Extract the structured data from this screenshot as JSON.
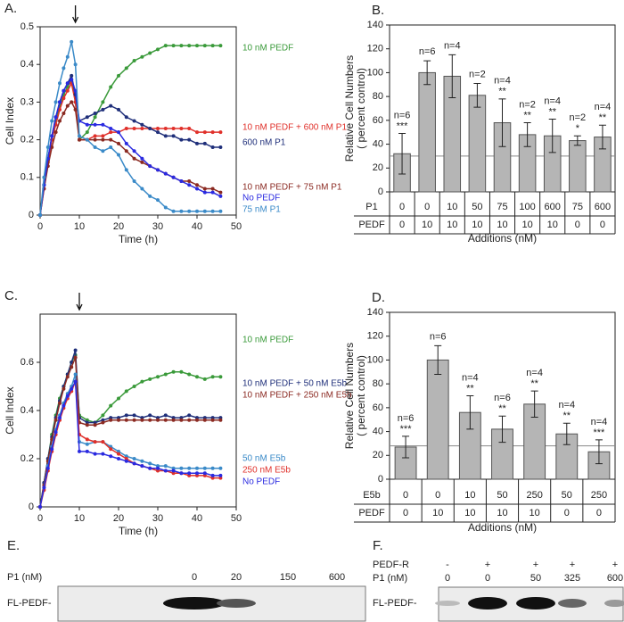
{
  "chart_data": [
    {
      "type": "line",
      "panel_label": "A.",
      "xlabel": "Time (h)",
      "ylabel": "Cell Index",
      "xlim": [
        0,
        50
      ],
      "xticks": [
        0,
        10,
        20,
        30,
        40,
        50
      ],
      "ylim": [
        0,
        0.5
      ],
      "yticks": [
        0,
        0.1,
        0.2,
        0.3,
        0.4,
        0.5
      ],
      "arrow_x": 9,
      "x": [
        0,
        1,
        2,
        3,
        4,
        5,
        6,
        7,
        8,
        9,
        10,
        12,
        14,
        16,
        18,
        20,
        22,
        24,
        26,
        28,
        30,
        32,
        34,
        36,
        38,
        40,
        42,
        44,
        46
      ],
      "series": [
        {
          "name": "10 nM PEDF",
          "color": "#3a9a3a",
          "values": [
            0,
            0.08,
            0.15,
            0.2,
            0.25,
            0.29,
            0.32,
            0.34,
            0.36,
            0.3,
            0.2,
            0.22,
            0.26,
            0.3,
            0.34,
            0.37,
            0.39,
            0.41,
            0.42,
            0.43,
            0.44,
            0.45,
            0.45,
            0.45,
            0.45,
            0.45,
            0.45,
            0.45,
            0.45
          ]
        },
        {
          "name": "10 nM PEDF + 600 nM P1",
          "color": "#e0302a",
          "values": [
            0,
            0.07,
            0.14,
            0.2,
            0.24,
            0.28,
            0.31,
            0.33,
            0.35,
            0.3,
            0.2,
            0.2,
            0.21,
            0.21,
            0.22,
            0.22,
            0.23,
            0.23,
            0.23,
            0.23,
            0.23,
            0.23,
            0.23,
            0.23,
            0.23,
            0.22,
            0.22,
            0.22,
            0.22
          ]
        },
        {
          "name": "600 nM P1",
          "color": "#1f2f7a",
          "values": [
            0,
            0.08,
            0.15,
            0.21,
            0.26,
            0.3,
            0.33,
            0.35,
            0.37,
            0.32,
            0.25,
            0.26,
            0.27,
            0.28,
            0.29,
            0.28,
            0.26,
            0.25,
            0.24,
            0.23,
            0.22,
            0.21,
            0.21,
            0.2,
            0.2,
            0.19,
            0.19,
            0.18,
            0.18
          ]
        },
        {
          "name": "10 nM PEDF + 75 nM P1",
          "color": "#8b2a22",
          "values": [
            0,
            0.07,
            0.13,
            0.18,
            0.22,
            0.25,
            0.27,
            0.29,
            0.3,
            0.28,
            0.2,
            0.2,
            0.2,
            0.2,
            0.2,
            0.19,
            0.17,
            0.15,
            0.14,
            0.13,
            0.12,
            0.11,
            0.1,
            0.09,
            0.09,
            0.08,
            0.07,
            0.07,
            0.06
          ]
        },
        {
          "name": "No PEDF",
          "color": "#2a2ae0",
          "values": [
            0,
            0.08,
            0.15,
            0.21,
            0.26,
            0.3,
            0.33,
            0.35,
            0.36,
            0.33,
            0.25,
            0.24,
            0.24,
            0.24,
            0.23,
            0.22,
            0.19,
            0.17,
            0.15,
            0.13,
            0.12,
            0.11,
            0.1,
            0.09,
            0.08,
            0.07,
            0.06,
            0.06,
            0.05
          ]
        },
        {
          "name": "75 nM P1",
          "color": "#3a8ac8",
          "values": [
            0,
            0.1,
            0.18,
            0.25,
            0.3,
            0.35,
            0.39,
            0.42,
            0.46,
            0.4,
            0.21,
            0.2,
            0.18,
            0.17,
            0.18,
            0.16,
            0.12,
            0.09,
            0.07,
            0.05,
            0.04,
            0.02,
            0.01,
            0.01,
            0.01,
            0.01,
            0.01,
            0.01,
            0.01
          ]
        }
      ]
    },
    {
      "type": "bar",
      "panel_label": "B.",
      "ylabel": [
        "Relative Cell Numbers",
        "( percent control)"
      ],
      "xlabel": "Additions (nM)",
      "ylim": [
        0,
        140
      ],
      "yticks": [
        0,
        20,
        40,
        60,
        80,
        100,
        120,
        140
      ],
      "reference_line": 30,
      "color": "#b5b5b5",
      "values": [
        32,
        100,
        97,
        81,
        58,
        48,
        47,
        43,
        46
      ],
      "errors": [
        17,
        10,
        18,
        10,
        20,
        10,
        14,
        4,
        10
      ],
      "n_labels": [
        "n=6",
        "n=6",
        "n=4",
        "n=2",
        "n=4",
        "n=2",
        "n=4",
        "n=2",
        "n=4"
      ],
      "stars": [
        "***",
        null,
        null,
        null,
        "**",
        "**",
        "**",
        "*",
        "**"
      ],
      "table_rows": [
        {
          "name": "P1",
          "values": [
            0,
            0,
            10,
            50,
            75,
            100,
            600,
            75,
            600
          ]
        },
        {
          "name": "PEDF",
          "values": [
            0,
            10,
            10,
            10,
            10,
            10,
            10,
            0,
            0
          ]
        }
      ]
    },
    {
      "type": "line",
      "panel_label": "C.",
      "xlabel": "Time (h)",
      "ylabel": "Cell Index",
      "xlim": [
        0,
        50
      ],
      "xticks": [
        0,
        10,
        20,
        30,
        40,
        50
      ],
      "ylim": [
        0,
        0.8
      ],
      "yticks": [
        0,
        0.2,
        0.4,
        0.6
      ],
      "arrow_x": 10,
      "x": [
        0,
        1,
        2,
        3,
        4,
        5,
        6,
        7,
        8,
        9,
        10,
        12,
        14,
        16,
        18,
        20,
        22,
        24,
        26,
        28,
        30,
        32,
        34,
        36,
        38,
        40,
        42,
        44,
        46
      ],
      "series": [
        {
          "name": "10 nM PEDF",
          "color": "#3a9a3a",
          "values": [
            0,
            0.1,
            0.2,
            0.3,
            0.38,
            0.45,
            0.5,
            0.55,
            0.6,
            0.63,
            0.38,
            0.36,
            0.35,
            0.38,
            0.42,
            0.45,
            0.48,
            0.5,
            0.52,
            0.53,
            0.54,
            0.55,
            0.56,
            0.56,
            0.55,
            0.54,
            0.53,
            0.54,
            0.54
          ]
        },
        {
          "name": "10 nM PEDF + 50 nM E5b",
          "color": "#1f2f7a",
          "values": [
            0,
            0.1,
            0.2,
            0.29,
            0.37,
            0.44,
            0.5,
            0.55,
            0.6,
            0.65,
            0.37,
            0.35,
            0.35,
            0.36,
            0.37,
            0.37,
            0.38,
            0.38,
            0.37,
            0.38,
            0.37,
            0.38,
            0.37,
            0.37,
            0.38,
            0.37,
            0.37,
            0.37,
            0.37
          ]
        },
        {
          "name": "10 nM PEDF + 250 nM E5b",
          "color": "#8b2a22",
          "values": [
            0,
            0.09,
            0.19,
            0.28,
            0.36,
            0.43,
            0.49,
            0.54,
            0.58,
            0.62,
            0.35,
            0.34,
            0.34,
            0.35,
            0.36,
            0.36,
            0.36,
            0.36,
            0.36,
            0.36,
            0.36,
            0.36,
            0.36,
            0.36,
            0.36,
            0.36,
            0.36,
            0.36,
            0.36
          ]
        },
        {
          "name": "50 nM E5b",
          "color": "#3a8ac8",
          "values": [
            0,
            0.08,
            0.17,
            0.25,
            0.32,
            0.38,
            0.43,
            0.47,
            0.5,
            0.55,
            0.27,
            0.26,
            0.27,
            0.27,
            0.25,
            0.23,
            0.21,
            0.2,
            0.19,
            0.18,
            0.17,
            0.17,
            0.16,
            0.16,
            0.16,
            0.16,
            0.16,
            0.16,
            0.16
          ]
        },
        {
          "name": "250 nM E5b",
          "color": "#e0302a",
          "values": [
            0,
            0.07,
            0.15,
            0.23,
            0.3,
            0.36,
            0.41,
            0.45,
            0.48,
            0.52,
            0.3,
            0.28,
            0.27,
            0.27,
            0.24,
            0.22,
            0.2,
            0.18,
            0.17,
            0.16,
            0.15,
            0.15,
            0.14,
            0.14,
            0.13,
            0.13,
            0.13,
            0.12,
            0.12
          ]
        },
        {
          "name": "No PEDF",
          "color": "#2a2ae0",
          "values": [
            0,
            0.08,
            0.16,
            0.24,
            0.31,
            0.37,
            0.42,
            0.46,
            0.49,
            0.52,
            0.23,
            0.23,
            0.22,
            0.22,
            0.21,
            0.2,
            0.19,
            0.18,
            0.17,
            0.16,
            0.16,
            0.15,
            0.15,
            0.14,
            0.14,
            0.14,
            0.14,
            0.13,
            0.13
          ]
        }
      ]
    },
    {
      "type": "bar",
      "panel_label": "D.",
      "ylabel": [
        "Relative Cell Numbers",
        "( percent control)"
      ],
      "xlabel": "Additions (nM)",
      "ylim": [
        0,
        140
      ],
      "yticks": [
        0,
        20,
        40,
        60,
        80,
        100,
        120,
        140
      ],
      "reference_line": 28,
      "color": "#b5b5b5",
      "values": [
        27,
        100,
        56,
        42,
        63,
        38,
        23
      ],
      "errors": [
        9,
        12,
        14,
        11,
        11,
        9,
        10
      ],
      "n_labels": [
        "n=6",
        "n=6",
        "n=4",
        "n=6",
        "n=4",
        "n=4",
        "n=4"
      ],
      "stars": [
        "***",
        null,
        "**",
        "**",
        "**",
        "**",
        "***"
      ],
      "table_rows": [
        {
          "name": "E5b",
          "values": [
            0,
            0,
            10,
            50,
            250,
            50,
            250
          ]
        },
        {
          "name": "PEDF",
          "values": [
            0,
            10,
            10,
            10,
            10,
            0,
            0
          ]
        }
      ]
    }
  ],
  "blots": [
    {
      "panel_label": "E.",
      "header_rows": [
        {
          "name": "P1 (nM)",
          "values": [
            "0",
            "20",
            "150",
            "600"
          ]
        }
      ],
      "band_label": "FL-PEDF-"
    },
    {
      "panel_label": "F.",
      "header_rows": [
        {
          "name": "PEDF-R",
          "values": [
            "-",
            "+",
            "+",
            "+",
            "+"
          ]
        },
        {
          "name": "P1 (nM)",
          "values": [
            "0",
            "0",
            "50",
            "325",
            "600"
          ]
        }
      ],
      "band_label": "FL-PEDF-"
    }
  ]
}
